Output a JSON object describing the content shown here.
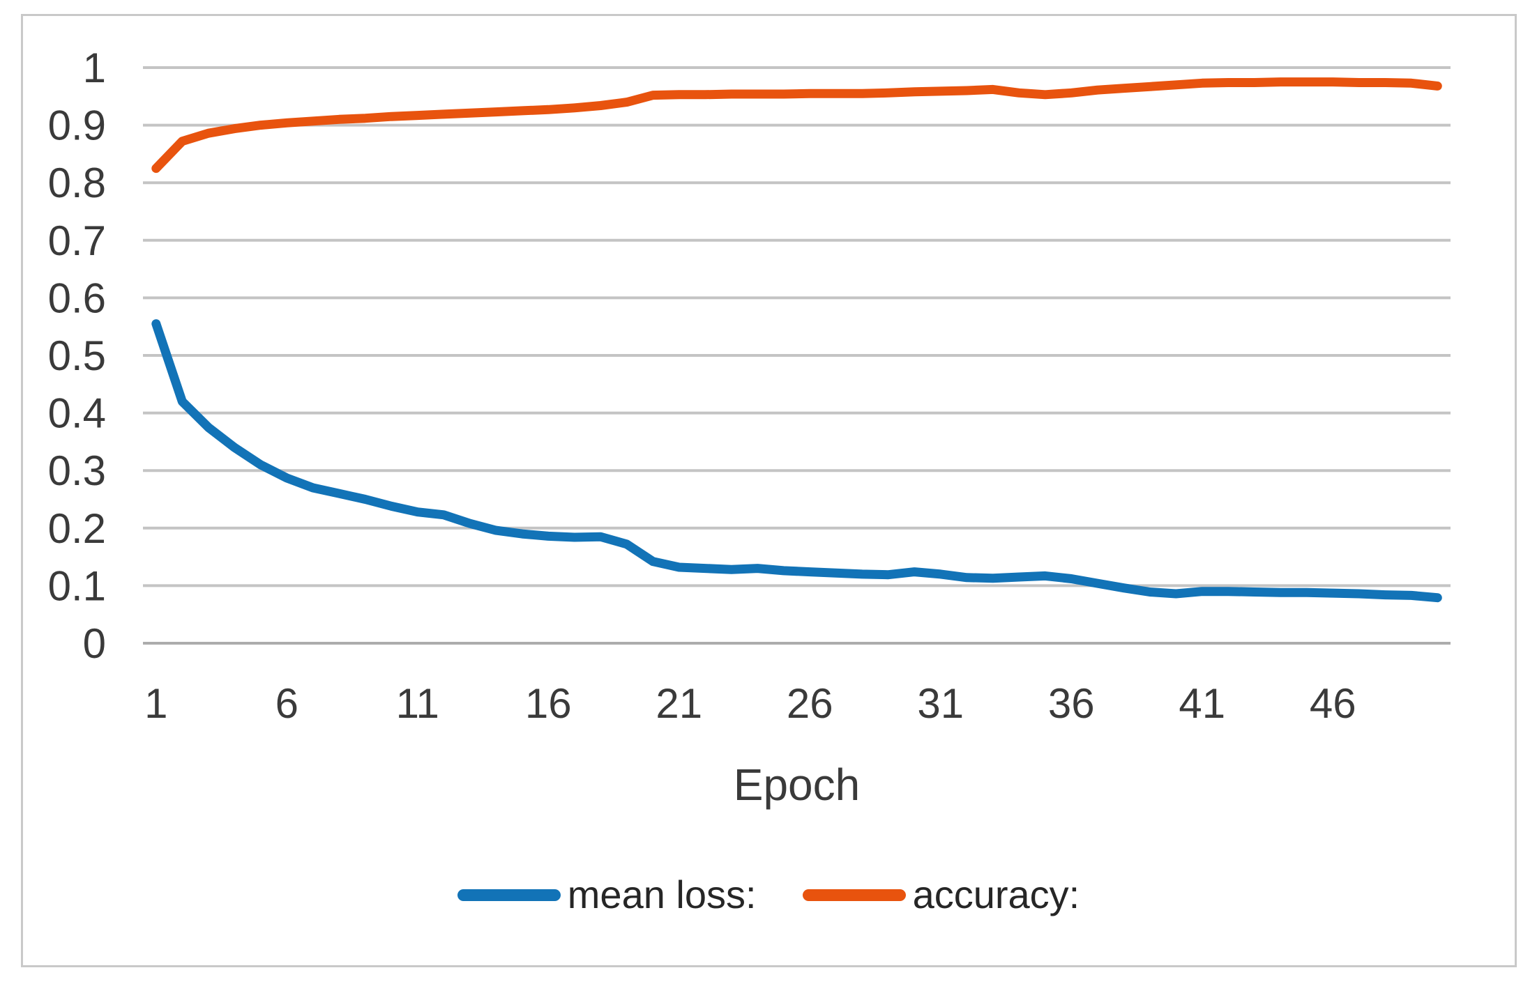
{
  "chart_data": {
    "type": "line",
    "title": "",
    "xlabel": "Epoch",
    "ylabel": "",
    "xlim": [
      1,
      50
    ],
    "ylim": [
      0,
      1
    ],
    "grid": "horizontal",
    "legend_position": "bottom-center",
    "x_ticks": [
      1,
      6,
      11,
      16,
      21,
      26,
      31,
      36,
      41,
      46
    ],
    "y_ticks": [
      {
        "v": 1.0,
        "label": "1"
      },
      {
        "v": 0.9,
        "label": "0.9"
      },
      {
        "v": 0.8,
        "label": "0.8"
      },
      {
        "v": 0.7,
        "label": "0.7"
      },
      {
        "v": 0.6,
        "label": "0.6"
      },
      {
        "v": 0.5,
        "label": "0.5"
      },
      {
        "v": 0.4,
        "label": "0.4"
      },
      {
        "v": 0.3,
        "label": "0.3"
      },
      {
        "v": 0.2,
        "label": "0.2"
      },
      {
        "v": 0.1,
        "label": "0.1"
      },
      {
        "v": 0.0,
        "label": "0"
      }
    ],
    "x": [
      1,
      2,
      3,
      4,
      5,
      6,
      7,
      8,
      9,
      10,
      11,
      12,
      13,
      14,
      15,
      16,
      17,
      18,
      19,
      20,
      21,
      22,
      23,
      24,
      25,
      26,
      27,
      28,
      29,
      30,
      31,
      32,
      33,
      34,
      35,
      36,
      37,
      38,
      39,
      40,
      41,
      42,
      43,
      44,
      45,
      46,
      47,
      48,
      49,
      50
    ],
    "series": [
      {
        "name": "mean loss:",
        "color": "#1273B7",
        "values": [
          0.555,
          0.42,
          0.375,
          0.34,
          0.31,
          0.287,
          0.27,
          0.26,
          0.25,
          0.238,
          0.228,
          0.223,
          0.208,
          0.196,
          0.19,
          0.186,
          0.184,
          0.185,
          0.172,
          0.142,
          0.132,
          0.13,
          0.128,
          0.13,
          0.126,
          0.124,
          0.122,
          0.12,
          0.119,
          0.124,
          0.12,
          0.114,
          0.113,
          0.115,
          0.117,
          0.112,
          0.104,
          0.096,
          0.089,
          0.086,
          0.09,
          0.09,
          0.089,
          0.088,
          0.088,
          0.087,
          0.086,
          0.084,
          0.083,
          0.079
        ]
      },
      {
        "name": "accuracy:",
        "color": "#E8530E",
        "values": [
          0.825,
          0.872,
          0.886,
          0.894,
          0.9,
          0.904,
          0.907,
          0.91,
          0.912,
          0.915,
          0.917,
          0.919,
          0.921,
          0.923,
          0.925,
          0.927,
          0.93,
          0.934,
          0.94,
          0.952,
          0.953,
          0.953,
          0.954,
          0.954,
          0.954,
          0.955,
          0.955,
          0.955,
          0.956,
          0.958,
          0.959,
          0.96,
          0.962,
          0.956,
          0.953,
          0.956,
          0.961,
          0.964,
          0.967,
          0.97,
          0.973,
          0.974,
          0.974,
          0.975,
          0.975,
          0.975,
          0.974,
          0.974,
          0.973,
          0.968
        ]
      }
    ],
    "style": {
      "gridline_color": "#C4C4C4",
      "zero_axis_color": "#ACACAC",
      "frame_border_color": "#C9C9C9",
      "tick_label_color": "#3A3A3A",
      "background": "#FFFFFF"
    }
  },
  "legend": {
    "items": [
      {
        "label": "mean loss:",
        "color": "#1273B7"
      },
      {
        "label": "accuracy:",
        "color": "#E8530E"
      }
    ]
  }
}
